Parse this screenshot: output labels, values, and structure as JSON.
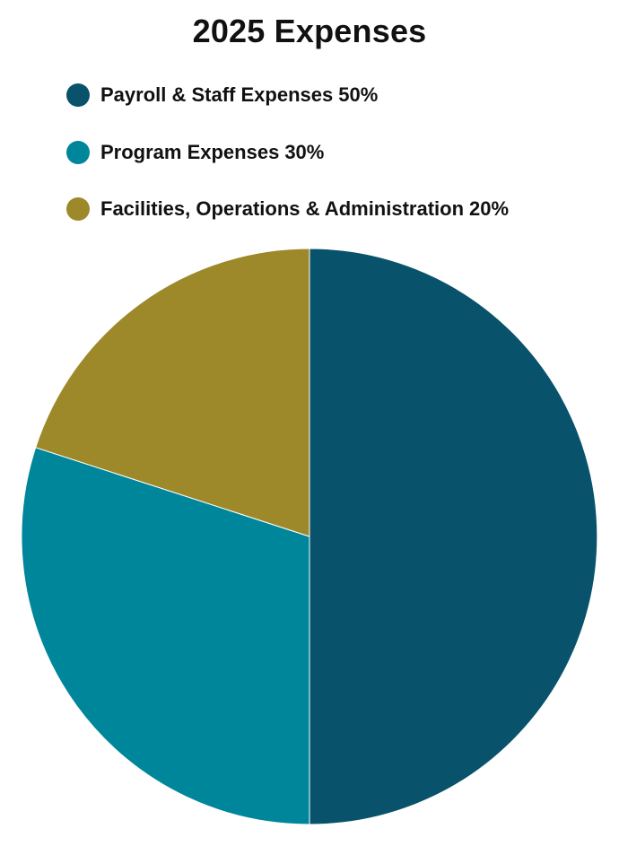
{
  "chart_data": {
    "type": "pie",
    "title": "2025 Expenses",
    "categories": [
      "Payroll & Staff Expenses",
      "Program Expenses",
      "Facilities, Operations & Administration"
    ],
    "values": [
      50,
      30,
      20
    ],
    "value_suffix": "%",
    "colors": [
      "#08526b",
      "#00869a",
      "#9d8929"
    ],
    "legend_position": "top-left",
    "start_angle": "12 o'clock",
    "direction": "clockwise"
  },
  "legend": {
    "items": [
      {
        "label": "Payroll & Staff Expenses",
        "value_text": "50%",
        "color": "#08526b"
      },
      {
        "label": "Program Expenses",
        "value_text": "30%",
        "color": "#00869a"
      },
      {
        "label": "Facilities, Operations & Administration",
        "value_text": "20%",
        "color": "#9d8929"
      }
    ]
  }
}
